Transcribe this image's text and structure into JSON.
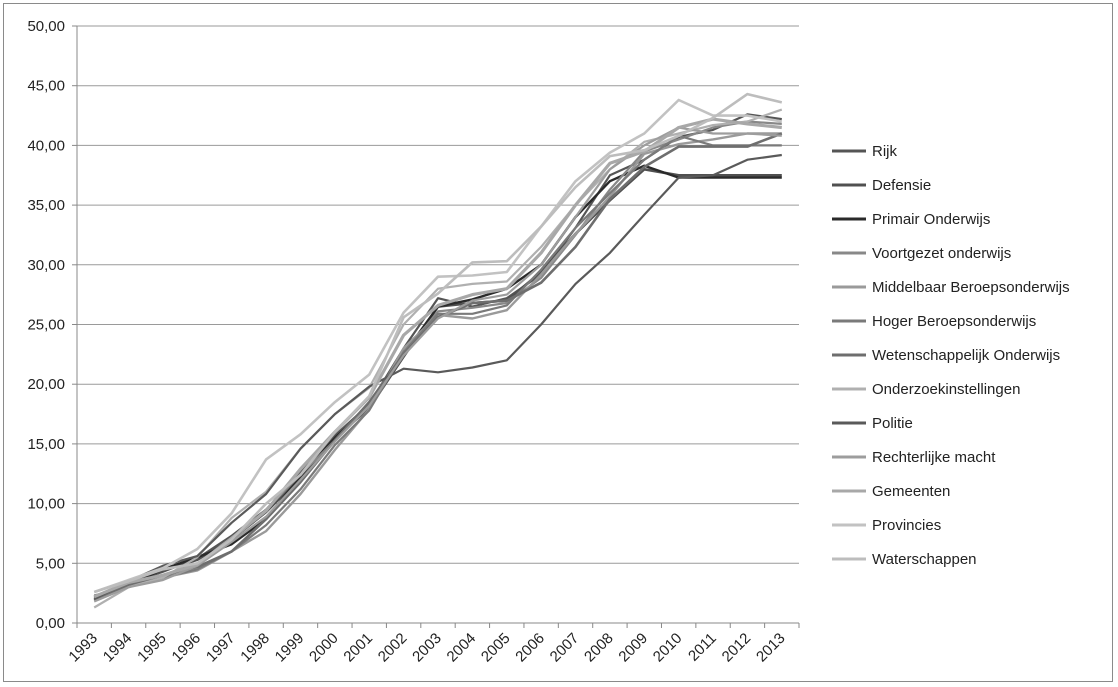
{
  "chart_data": {
    "type": "line",
    "title": "",
    "xlabel": "",
    "ylabel": "",
    "ylim": [
      0,
      50
    ],
    "ytick_step": 5,
    "ytick_labels": [
      "0,00",
      "5,00",
      "10,00",
      "15,00",
      "20,00",
      "25,00",
      "30,00",
      "35,00",
      "40,00",
      "45,00",
      "50,00"
    ],
    "categories": [
      "1993",
      "1994",
      "1995",
      "1996",
      "1997",
      "1998",
      "1999",
      "2000",
      "2001",
      "2002",
      "2003",
      "2004",
      "2005",
      "2006",
      "2007",
      "2008",
      "2009",
      "2010",
      "2011",
      "2012",
      "2013"
    ],
    "grid": "horizontal",
    "legend_position": "right",
    "series": [
      {
        "name": "Rijk",
        "color": "#555555",
        "width": 2.2,
        "values": [
          2.2,
          3.3,
          4.3,
          5.4,
          7.3,
          9.5,
          12.6,
          15.7,
          18.3,
          23.0,
          27.2,
          26.5,
          27.2,
          29.2,
          33.1,
          37.5,
          38.8,
          40.7,
          41.3,
          42.6,
          42.2
        ]
      },
      {
        "name": "Defensie",
        "color": "#505050",
        "width": 2.6,
        "values": [
          2.1,
          3.4,
          4.4,
          5.3,
          7.0,
          9.3,
          12.2,
          15.5,
          18.0,
          22.3,
          26.5,
          26.8,
          27.0,
          29.4,
          32.6,
          35.4,
          38.0,
          37.5,
          37.5,
          37.5,
          37.5
        ]
      },
      {
        "name": "Primair Onderwijs",
        "color": "#2a2a2a",
        "width": 2.4,
        "values": [
          2.0,
          3.2,
          4.5,
          5.5,
          6.6,
          8.7,
          12.3,
          15.5,
          18.2,
          22.5,
          26.5,
          27.1,
          28.0,
          30.0,
          34.0,
          37.0,
          38.3,
          37.3,
          37.3,
          37.3,
          37.3
        ]
      },
      {
        "name": "Voortgezet onderwijs",
        "color": "#888888",
        "width": 2.2,
        "values": [
          2.1,
          3.0,
          4.0,
          5.0,
          6.9,
          9.5,
          12.4,
          15.3,
          18.2,
          22.6,
          26.1,
          26.4,
          26.8,
          28.9,
          32.5,
          36.3,
          39.5,
          40.5,
          41.5,
          42.0,
          41.8
        ]
      },
      {
        "name": "Middelbaar Beroepsonderwijs",
        "color": "#9a9a9a",
        "width": 2.4,
        "values": [
          2.0,
          3.1,
          3.8,
          4.4,
          6.0,
          7.7,
          10.8,
          14.5,
          17.9,
          23.0,
          25.8,
          25.5,
          26.2,
          29.2,
          32.6,
          35.7,
          39.3,
          40.1,
          40.5,
          41.0,
          41.0
        ]
      },
      {
        "name": "Hoger Beroepsonderwijs",
        "color": "#7a7a7a",
        "width": 2.2,
        "values": [
          2.3,
          3.0,
          3.8,
          4.5,
          6.0,
          8.2,
          11.2,
          14.9,
          17.8,
          22.7,
          25.9,
          25.9,
          26.6,
          29.6,
          33.1,
          36.0,
          38.8,
          40.8,
          40.0,
          40.0,
          40.0
        ]
      },
      {
        "name": "Wetenschappelijk Onderwijs",
        "color": "#6e6e6e",
        "width": 2.6,
        "values": [
          1.9,
          3.2,
          4.0,
          4.7,
          6.0,
          8.7,
          11.8,
          15.3,
          18.5,
          22.5,
          25.6,
          26.8,
          27.0,
          28.5,
          31.5,
          35.5,
          38.2,
          39.9,
          39.9,
          39.9,
          41.0
        ]
      },
      {
        "name": "Onderzoekinstellingen",
        "color": "#b0b0b0",
        "width": 2.2,
        "values": [
          1.3,
          3.0,
          3.8,
          5.5,
          8.8,
          11.0,
          14.6,
          17.5,
          19.7,
          25.0,
          28.0,
          28.4,
          28.6,
          31.5,
          35.0,
          38.0,
          40.3,
          41.0,
          41.7,
          42.0,
          43.0
        ]
      },
      {
        "name": "Politie",
        "color": "#5a5a5a",
        "width": 2.2,
        "values": [
          2.0,
          3.5,
          4.8,
          5.6,
          8.4,
          10.8,
          14.6,
          17.5,
          19.8,
          21.3,
          21.0,
          21.4,
          22.0,
          25.0,
          28.4,
          31.0,
          34.2,
          37.3,
          37.5,
          38.8,
          39.2
        ]
      },
      {
        "name": "Rechterlijke macht",
        "color": "#9d9d9d",
        "width": 2.2,
        "values": [
          1.8,
          3.0,
          3.6,
          4.8,
          6.8,
          8.9,
          12.0,
          15.2,
          18.2,
          22.4,
          25.5,
          27.0,
          27.5,
          30.0,
          34.0,
          38.0,
          40.0,
          41.5,
          41.0,
          41.0,
          40.8
        ]
      },
      {
        "name": "Gemeenten",
        "color": "#a8a8a8",
        "width": 3.2,
        "values": [
          2.2,
          3.4,
          4.0,
          4.9,
          7.1,
          9.4,
          12.9,
          16.0,
          18.9,
          24.1,
          26.6,
          27.5,
          28.0,
          31.0,
          35.0,
          38.5,
          39.5,
          41.5,
          42.2,
          41.8,
          41.5
        ]
      },
      {
        "name": "Provincies",
        "color": "#c2c2c2",
        "width": 2.6,
        "values": [
          2.6,
          3.6,
          4.6,
          6.2,
          9.2,
          13.7,
          15.8,
          18.5,
          20.8,
          26.0,
          29.0,
          29.1,
          29.4,
          33.2,
          37.0,
          39.4,
          41.0,
          43.8,
          42.5,
          42.5,
          42.0
        ]
      },
      {
        "name": "Waterschappen",
        "color": "#bdbdbd",
        "width": 2.6,
        "values": [
          2.6,
          3.5,
          4.5,
          5.0,
          7.0,
          10.0,
          12.4,
          16.0,
          19.0,
          25.6,
          27.6,
          30.2,
          30.3,
          33.2,
          36.5,
          39.1,
          39.6,
          40.8,
          42.3,
          44.3,
          43.6
        ]
      }
    ]
  }
}
